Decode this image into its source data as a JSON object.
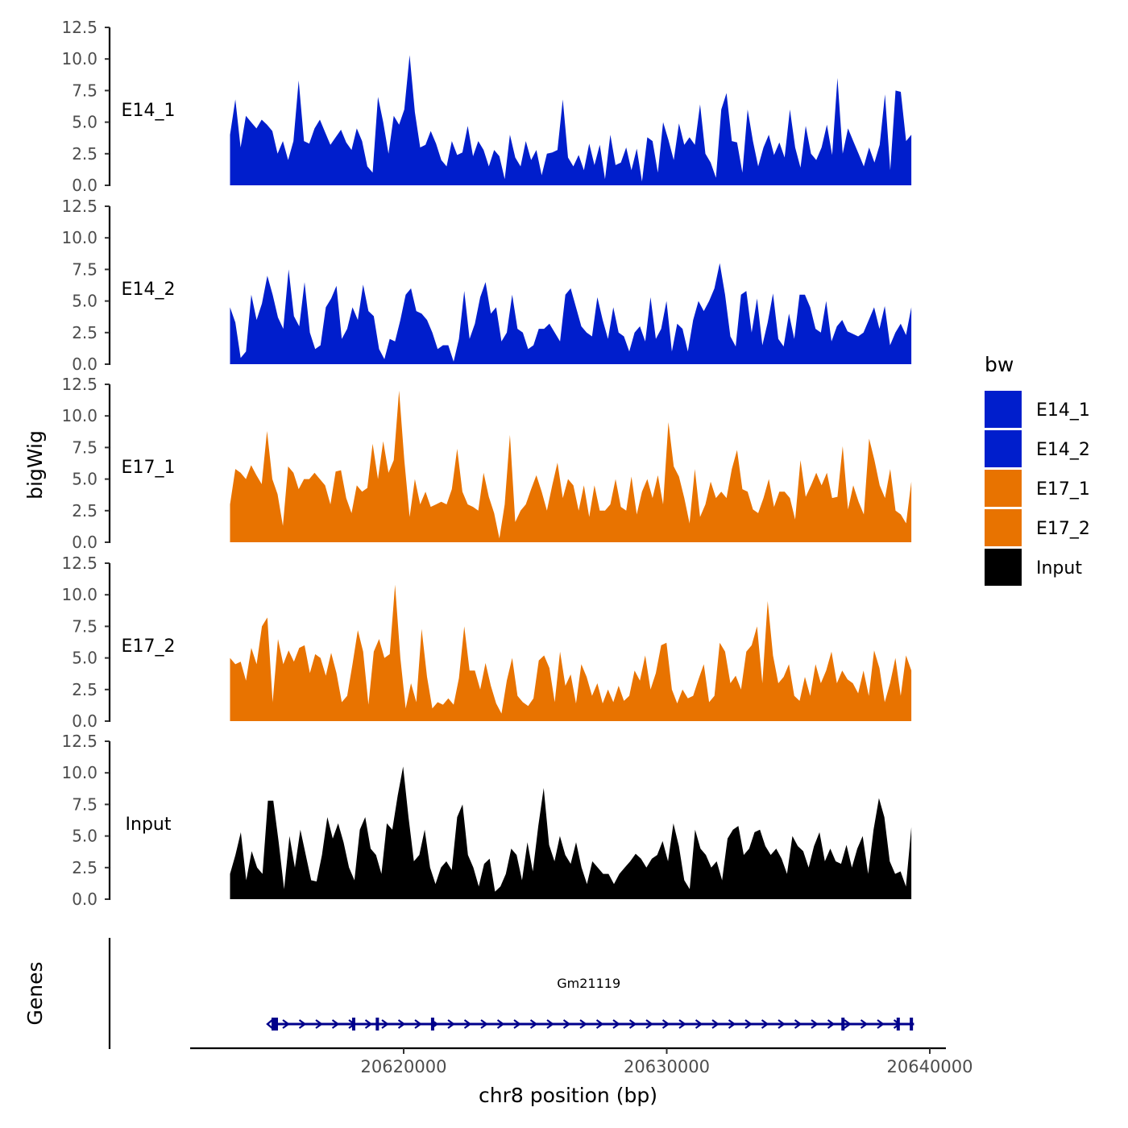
{
  "chart_data": {
    "type": "area",
    "y_axis_title": "bigWig",
    "x_axis_title": "chr8 position (bp)",
    "genes_axis_title": "Genes",
    "legend_title": "bw",
    "x_range": [
      20611000,
      20640000
    ],
    "x_ticks": [
      20620000,
      20630000,
      20640000
    ],
    "x_tick_labels": [
      "20620000",
      "20630000",
      "20640000"
    ],
    "y_range": [
      0,
      12.5
    ],
    "y_ticks": [
      0,
      2.5,
      5,
      7.5,
      10,
      12.5
    ],
    "y_tick_labels": [
      "0.0",
      "2.5",
      "5.0",
      "7.5",
      "10.0",
      "12.5"
    ],
    "series": [
      {
        "name": "E14_1",
        "color": "#001ecc",
        "x_start": 20613400,
        "x_end": 20639300,
        "values": [
          4,
          6.8,
          3,
          5.5,
          5,
          4.5,
          5.2,
          4.8,
          4.3,
          2.5,
          3.5,
          2,
          3.5,
          8.3,
          3.5,
          3.3,
          4.5,
          5.2,
          4.2,
          3.2,
          3.8,
          4.4,
          3.4,
          2.8,
          4.5,
          3.5,
          1.5,
          1,
          7,
          5,
          2.5,
          5.5,
          4.8,
          6,
          10.3,
          5.8,
          3,
          3.2,
          4.3,
          3.3,
          2,
          1.5,
          3.5,
          2.4,
          2.6,
          4.7,
          2.3,
          3.5,
          2.8,
          1.5,
          2.8,
          2.3,
          0.5,
          4,
          2.2,
          1.5,
          3.5,
          2,
          2.8,
          0.8,
          2.5,
          2.6,
          2.8,
          6.8,
          2.2,
          1.5,
          2.4,
          1.2,
          3.3,
          1.6,
          3.2,
          0.5,
          4,
          1.6,
          1.8,
          3,
          1.2,
          2.9,
          0.3,
          3.8,
          3.5,
          1,
          5,
          3.6,
          2,
          4.9,
          3.2,
          3.8,
          3.2,
          6.4,
          2.5,
          1.8,
          0.6,
          6,
          7.3,
          3.5,
          3.4,
          1,
          6,
          3.5,
          1.5,
          3,
          4,
          2.4,
          3.4,
          2.2,
          6,
          3,
          1.4,
          4.7,
          2.5,
          2,
          3,
          4.8,
          2.4,
          8.5,
          2.5,
          4.5,
          3.5,
          2.5,
          1.5,
          3,
          1.8,
          3.2,
          7.2,
          1.2,
          7.5,
          7.4,
          3.5,
          4
        ],
        "label_color": "#000000"
      },
      {
        "name": "E14_2",
        "color": "#001ecc",
        "x_start": 20613400,
        "x_end": 20639300,
        "values": [
          4.5,
          3.3,
          0.5,
          1,
          5.5,
          3.5,
          4.8,
          7,
          5.5,
          3.7,
          2.8,
          7.5,
          3.8,
          3,
          6.5,
          2.5,
          1.2,
          1.5,
          4.5,
          5.2,
          6.2,
          2,
          2.8,
          4.5,
          3.5,
          6.3,
          4.2,
          3.8,
          1.2,
          0.4,
          2,
          1.8,
          3.5,
          5.5,
          6,
          4.2,
          4,
          3.5,
          2.5,
          1.2,
          1.5,
          1.5,
          0.2,
          2,
          5.8,
          2,
          3.2,
          5.3,
          6.5,
          4,
          4.5,
          1.8,
          2.5,
          5.5,
          2.8,
          2.5,
          1.2,
          1.5,
          2.8,
          2.8,
          3.2,
          2.5,
          1.8,
          5.5,
          6,
          4.5,
          3,
          2.5,
          2.2,
          5.3,
          3.5,
          2,
          4.5,
          2.5,
          2.2,
          1,
          2.5,
          3,
          1.8,
          5.3,
          2,
          2.8,
          5,
          1,
          3.2,
          2.8,
          1,
          3.5,
          5,
          4.2,
          5,
          6,
          8,
          5.5,
          2.2,
          1.4,
          5.5,
          5.8,
          2.5,
          5.2,
          1.5,
          3.3,
          5.6,
          2,
          1.4,
          4,
          2,
          5.5,
          5.5,
          4.5,
          2.8,
          2.5,
          5,
          1.8,
          3,
          3.5,
          2.6,
          2.4,
          2.2,
          2.5,
          3.5,
          4.5,
          2.8,
          4.6,
          1.5,
          2.5,
          3.2,
          2.3,
          4.5
        ],
        "label_color": "#000000"
      },
      {
        "name": "E17_1",
        "color": "#e87300",
        "x_start": 20613400,
        "x_end": 20639300,
        "values": [
          3,
          5.8,
          5.5,
          5,
          6.1,
          5.3,
          4.6,
          8.8,
          5,
          3.8,
          1.3,
          6,
          5.5,
          4.2,
          5,
          5,
          5.5,
          5,
          4.5,
          3,
          5.6,
          5.7,
          3.5,
          2.3,
          4.5,
          4,
          4.3,
          7.8,
          5,
          8,
          5.5,
          6.5,
          12,
          6.5,
          2,
          5,
          3,
          4,
          2.8,
          3,
          3.2,
          3,
          4.2,
          7.4,
          4,
          3,
          2.8,
          2.5,
          5.5,
          3.6,
          2.3,
          0.3,
          3,
          8.5,
          1.6,
          2.5,
          3,
          4.2,
          5.3,
          4,
          2.5,
          4.5,
          6.3,
          3.5,
          5,
          4.5,
          2.5,
          4.5,
          2,
          4.5,
          2.5,
          2.5,
          3,
          5,
          2.8,
          2.5,
          5.2,
          2.2,
          4,
          5,
          3.5,
          5.3,
          3,
          9.5,
          6,
          5.2,
          3.5,
          1.5,
          5.8,
          2,
          3,
          4.8,
          3.5,
          4,
          3.5,
          5.8,
          7.3,
          4.2,
          4,
          2.6,
          2.3,
          3.5,
          5,
          2.8,
          4,
          4,
          3.5,
          1.8,
          6.5,
          3.6,
          4.5,
          5.5,
          4.5,
          5.5,
          3.5,
          3.6,
          7.6,
          2.6,
          4.5,
          3.2,
          2.2,
          8.2,
          6.5,
          4.5,
          3.5,
          5.8,
          2.5,
          2.2,
          1.5,
          4.8
        ],
        "label_color": "#000000"
      },
      {
        "name": "E17_2",
        "color": "#e87300",
        "x_start": 20613400,
        "x_end": 20639300,
        "values": [
          5,
          4.5,
          4.7,
          3.2,
          5.8,
          4.5,
          7.5,
          8.2,
          1.5,
          6.5,
          4.5,
          5.6,
          4.7,
          5.8,
          6,
          3.8,
          5.3,
          5,
          3.6,
          5.4,
          3.8,
          1.5,
          2,
          4.5,
          7.2,
          5.5,
          1.3,
          5.5,
          6.5,
          5,
          5.3,
          10.8,
          5,
          1,
          3,
          1.5,
          7.3,
          3.5,
          1,
          1.5,
          1.3,
          1.8,
          1.3,
          3.4,
          7.5,
          4,
          4,
          2.5,
          4.6,
          2.8,
          1.4,
          0.6,
          3.2,
          5,
          2,
          1.5,
          1.2,
          1.8,
          4.8,
          5.2,
          4.2,
          1.5,
          5.5,
          2.8,
          3.7,
          1.4,
          4.5,
          3.5,
          2,
          3,
          1.4,
          2.5,
          1.5,
          2.8,
          1.6,
          2,
          4,
          3.2,
          5.2,
          2.5,
          3.8,
          6,
          6.2,
          2.5,
          1.4,
          2.5,
          1.8,
          2,
          3.3,
          4.5,
          1.5,
          2,
          6.2,
          5.5,
          3,
          3.6,
          2.5,
          5.5,
          6,
          7.5,
          3,
          9.5,
          5.2,
          3,
          3.5,
          4.5,
          2,
          1.6,
          3.5,
          2,
          4.5,
          3,
          4,
          5.5,
          3,
          4,
          3.3,
          3,
          2.2,
          4,
          2,
          5.6,
          4.2,
          1.5,
          3,
          5,
          2,
          5.2,
          4
        ],
        "label_color": "#000000"
      },
      {
        "name": "Input",
        "color": "#000000",
        "x_start": 20613400,
        "x_end": 20639300,
        "values": [
          2,
          3.5,
          5.3,
          1.5,
          3.8,
          2.5,
          2,
          7.8,
          7.8,
          4.5,
          0.8,
          5,
          2.5,
          5.5,
          3.5,
          1.5,
          1.4,
          3.5,
          6.5,
          4.8,
          6,
          4.5,
          2.5,
          1.5,
          5.5,
          6.5,
          4,
          3.5,
          2,
          6,
          5.5,
          8.2,
          10.5,
          6.5,
          3,
          3.5,
          5.5,
          2.5,
          1.2,
          2.5,
          3,
          2.3,
          6.5,
          7.5,
          3.5,
          2.5,
          1,
          2.8,
          3.2,
          0.6,
          1,
          2,
          4,
          3.5,
          1.5,
          4.5,
          2.2,
          5.8,
          8.8,
          4.3,
          3,
          5,
          3.5,
          2.8,
          4.5,
          2.5,
          1.2,
          3,
          2.5,
          2,
          2,
          1.2,
          2,
          2.5,
          3,
          3.6,
          3.2,
          2.5,
          3.2,
          3.5,
          4.6,
          3,
          6,
          4.2,
          1.5,
          0.8,
          5.5,
          4,
          3.5,
          2.5,
          3,
          1.5,
          4.8,
          5.5,
          5.8,
          3.5,
          4,
          5.3,
          5.5,
          4.2,
          3.5,
          4,
          3.2,
          2,
          5,
          4.2,
          3.8,
          2.5,
          4.2,
          5.3,
          3,
          4,
          3,
          2.8,
          4.3,
          2.5,
          4,
          5,
          2,
          5.5,
          8,
          6.5,
          3,
          2,
          2.2,
          1,
          5.7
        ],
        "label_color": "#000000"
      }
    ],
    "genes": [
      {
        "name": "Gm21119",
        "start": 20615100,
        "end": 20639400,
        "color": "#00008b",
        "strand": "+",
        "exons": [
          20615100,
          20618100,
          20619000,
          20621100,
          20636700,
          20638800,
          20639300
        ]
      }
    ],
    "legend": [
      {
        "label": "E14_1",
        "color": "#001ecc"
      },
      {
        "label": "E14_2",
        "color": "#001ecc"
      },
      {
        "label": "E17_1",
        "color": "#e87300"
      },
      {
        "label": "E17_2",
        "color": "#e87300"
      },
      {
        "label": "Input",
        "color": "#000000"
      }
    ]
  }
}
